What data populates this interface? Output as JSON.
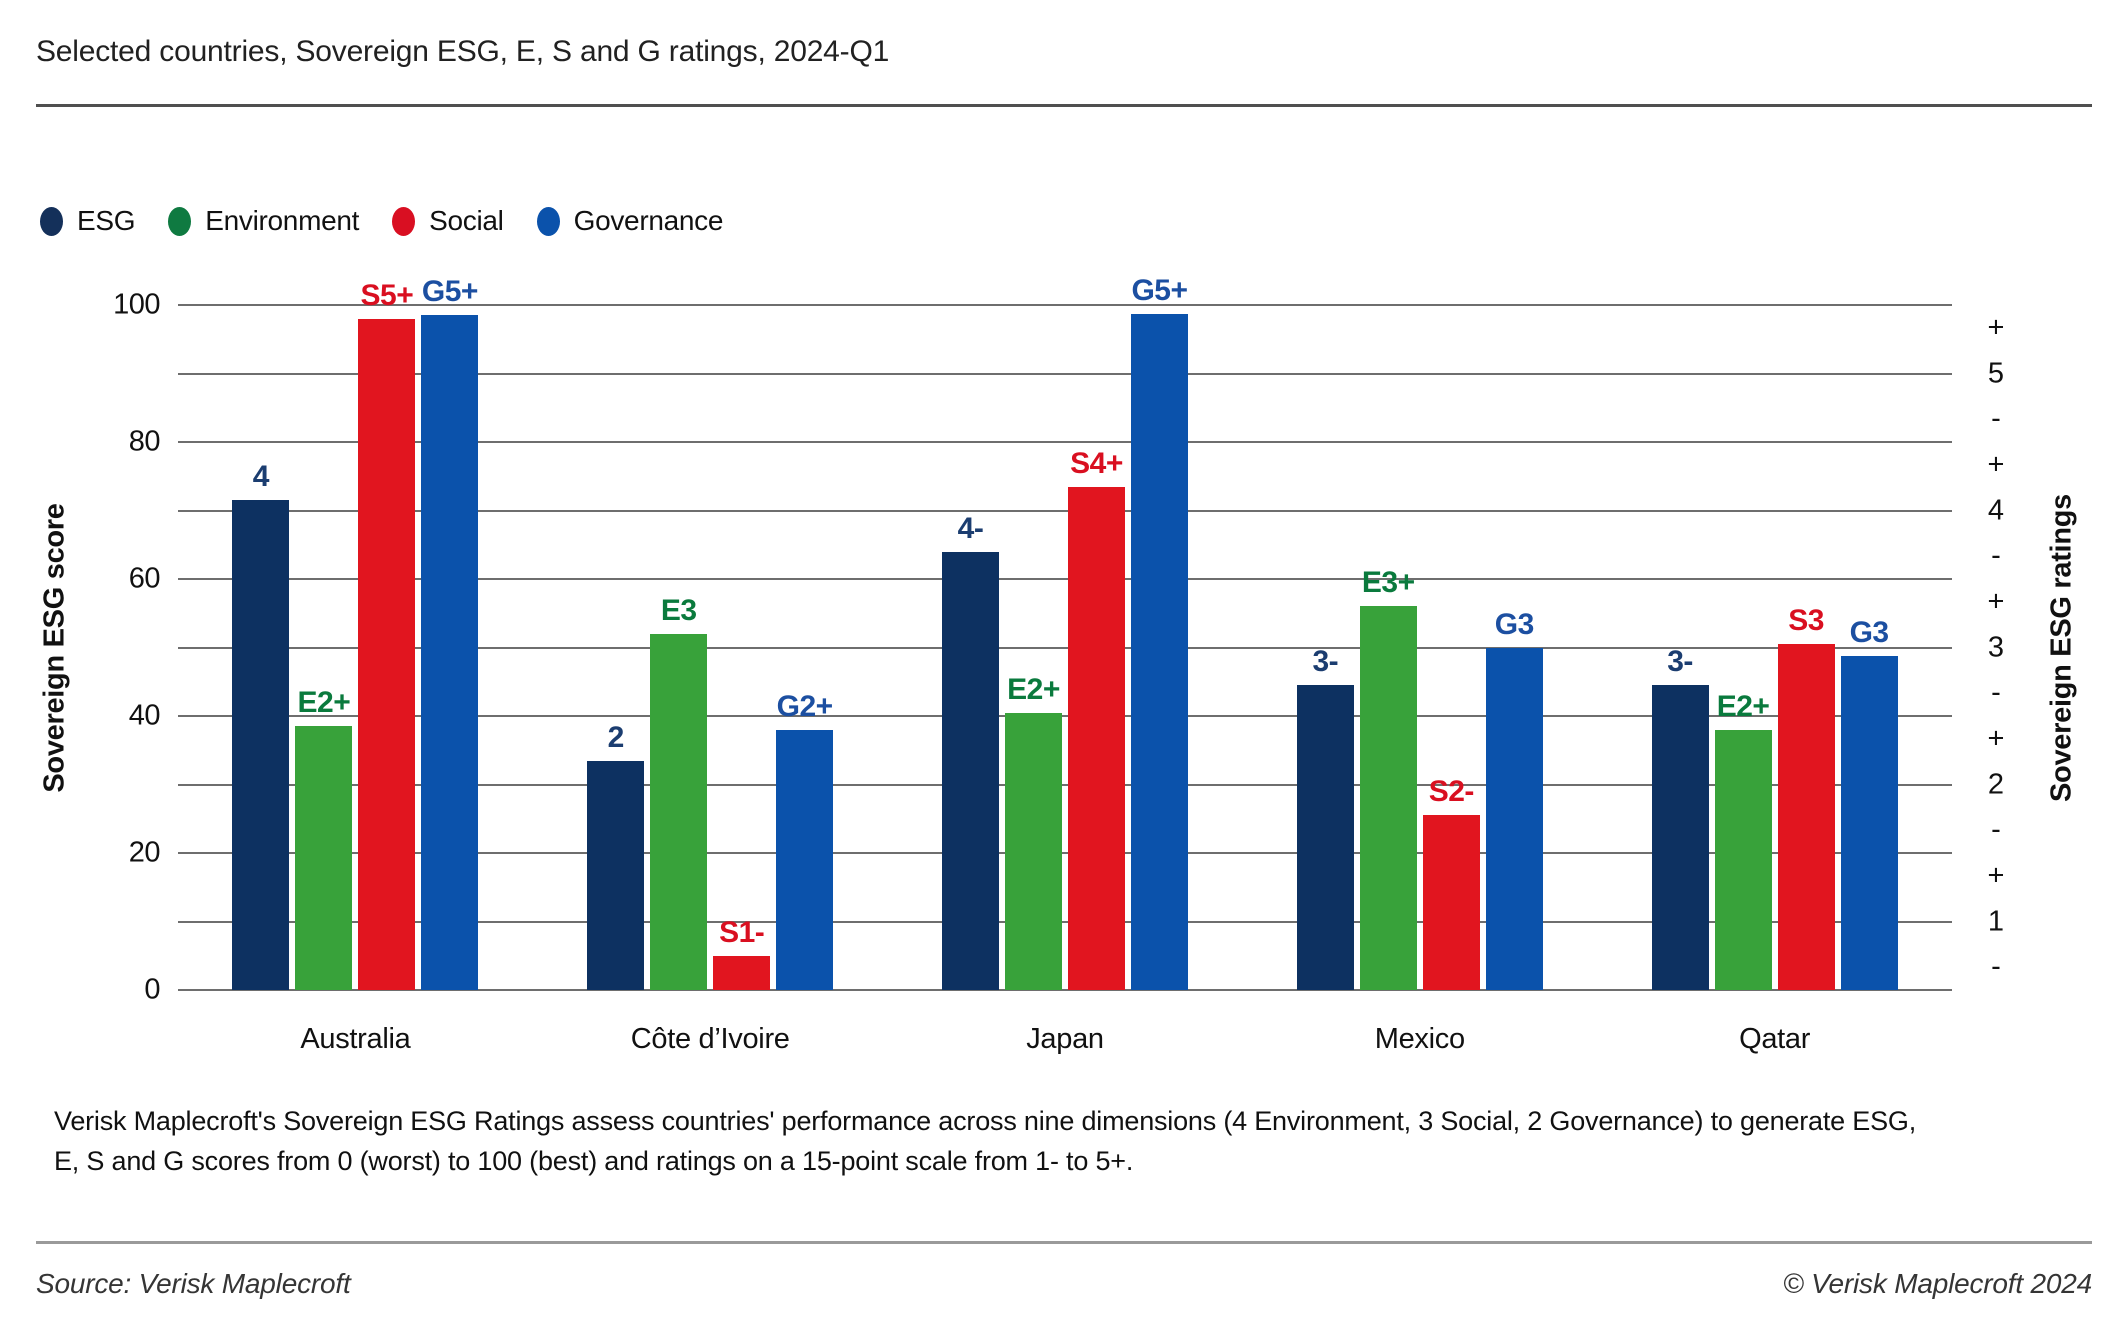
{
  "title": "Selected countries, Sovereign ESG, E, S and G ratings, 2024-Q1",
  "legend": [
    {
      "label": "ESG",
      "color": "#14305a"
    },
    {
      "label": "Environment",
      "color": "#0f7a41"
    },
    {
      "label": "Social",
      "color": "#d90f22"
    },
    {
      "label": "Governance",
      "color": "#0b52ab"
    }
  ],
  "chart_data": {
    "type": "bar",
    "title": "Selected countries, Sovereign ESG, E, S and G ratings, 2024-Q1",
    "categories": [
      "Australia",
      "Côte d’Ivoire",
      "Japan",
      "Mexico",
      "Qatar"
    ],
    "series": [
      {
        "name": "ESG",
        "color": "#0d3161",
        "label_color": "#1b3d70",
        "values": [
          71.5,
          33.5,
          64,
          44.5,
          44.5
        ],
        "ratings": [
          "4",
          "2",
          "4-",
          "3-",
          "3-"
        ]
      },
      {
        "name": "Environment",
        "color": "#38a23a",
        "label_color": "#0a7a3d",
        "values": [
          38.5,
          52,
          40.5,
          56,
          38
        ],
        "ratings": [
          "E2+",
          "E3",
          "E2+",
          "E3+",
          "E2+"
        ]
      },
      {
        "name": "Social",
        "color": "#e1151f",
        "label_color": "#d90f20",
        "values": [
          98,
          5,
          73.5,
          25.5,
          50.5
        ],
        "ratings": [
          "S5+",
          "S1-",
          "S4+",
          "S2-",
          "S3"
        ]
      },
      {
        "name": "Governance",
        "color": "#0b52ab",
        "label_color": "#1c4fa1",
        "values": [
          98.5,
          38,
          98.7,
          50,
          48.7
        ],
        "ratings": [
          "G5+",
          "G2+",
          "G5+",
          "G3",
          "G3"
        ]
      }
    ],
    "ylabel_left": "Sovereign ESG score",
    "ylabel_right": "Sovereign ESG ratings",
    "ylim": [
      0,
      100
    ],
    "yticks_left": [
      0,
      20,
      40,
      60,
      80,
      100
    ],
    "gridlines_every": 10,
    "grid": true,
    "legend_position": "top-left",
    "right_ticks": [
      {
        "text": "+",
        "value": 96.7
      },
      {
        "text": "5",
        "value": 90
      },
      {
        "text": "-",
        "value": 83.3
      },
      {
        "text": "+",
        "value": 76.7
      },
      {
        "text": "4",
        "value": 70
      },
      {
        "text": "-",
        "value": 63.3
      },
      {
        "text": "+",
        "value": 56.7
      },
      {
        "text": "3",
        "value": 50
      },
      {
        "text": "-",
        "value": 43.3
      },
      {
        "text": "+",
        "value": 36.7
      },
      {
        "text": "2",
        "value": 30
      },
      {
        "text": "-",
        "value": 23.3
      },
      {
        "text": "+",
        "value": 16.7
      },
      {
        "text": "1",
        "value": 10
      },
      {
        "text": "-",
        "value": 3.3
      }
    ]
  },
  "footnote_line1": "Verisk Maplecroft's Sovereign ESG Ratings assess countries' performance across nine dimensions (4 Environment, 3 Social, 2 Governance) to generate ESG,",
  "footnote_line2": "E, S and G scores from 0 (worst) to 100 (best) and ratings on a 15-point scale from 1- to 5+.",
  "source_left": "Source: Verisk Maplecroft",
  "source_right": "© Verisk Maplecroft 2024"
}
